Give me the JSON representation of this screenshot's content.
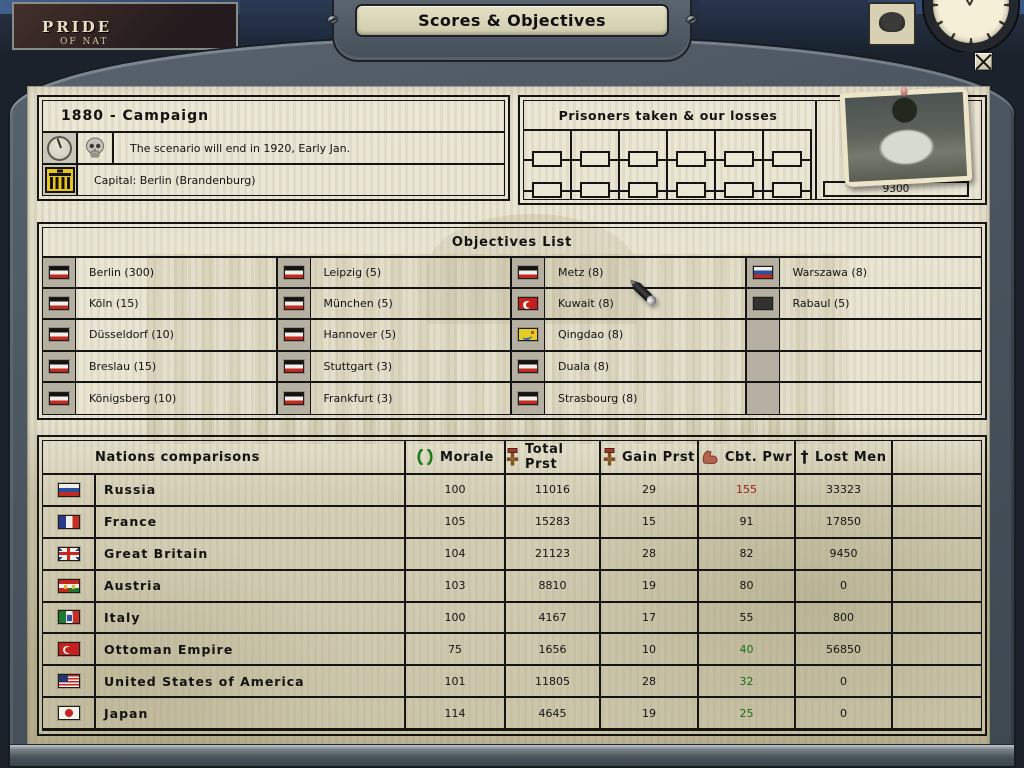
{
  "window": {
    "title": "Scores & Objectives"
  },
  "background": {
    "logo_line1": "PRIDE",
    "logo_line2": "OF NAT"
  },
  "campaign": {
    "title": "1880 - Campaign",
    "scenario_note": "The scenario will end in 1920, Early Jan.",
    "capital_note": "Capital: Berlin (Brandenburg)",
    "icons": [
      "clock-icon",
      "skull-icon",
      "brandenburg-gate-icon"
    ]
  },
  "prisoners": {
    "title": "Prisoners taken & our losses",
    "columns": 6,
    "boxes_per_column": 2,
    "losses_value": "9300",
    "photo": "monument-photo"
  },
  "objectives": {
    "title": "Objectives List",
    "columns": [
      [
        {
          "flag": "de",
          "name": "Berlin (300)"
        },
        {
          "flag": "de",
          "name": "Köln (15)"
        },
        {
          "flag": "de",
          "name": "Düsseldorf (10)"
        },
        {
          "flag": "de",
          "name": "Breslau (15)"
        },
        {
          "flag": "de",
          "name": "Königsberg (10)"
        }
      ],
      [
        {
          "flag": "de",
          "name": "Leipzig (5)"
        },
        {
          "flag": "de",
          "name": "München (5)"
        },
        {
          "flag": "de",
          "name": "Hannover (5)"
        },
        {
          "flag": "de",
          "name": "Stuttgart (3)"
        },
        {
          "flag": "de",
          "name": "Frankfurt (3)"
        }
      ],
      [
        {
          "flag": "de",
          "name": "Metz (8)"
        },
        {
          "flag": "ot",
          "name": "Kuwait (8)"
        },
        {
          "flag": "qi",
          "name": "Qingdao (8)"
        },
        {
          "flag": "de",
          "name": "Duala (8)"
        },
        {
          "flag": "de",
          "name": "Strasbourg (8)"
        }
      ],
      [
        {
          "flag": "ru",
          "name": "Warszawa (8)"
        },
        {
          "flag": "dk",
          "name": "Rabaul (5)"
        },
        {
          "flag": null,
          "name": ""
        },
        {
          "flag": null,
          "name": ""
        },
        {
          "flag": null,
          "name": ""
        }
      ]
    ]
  },
  "nations": {
    "title": "Nations comparisons",
    "headers": [
      {
        "icon": "wreath-icon",
        "label": "Morale"
      },
      {
        "icon": "medal-icon",
        "label": "Total Prst"
      },
      {
        "icon": "medal-icon",
        "label": "Gain Prst"
      },
      {
        "icon": "bicep-icon",
        "label": "Cbt. Pwr"
      },
      {
        "icon": "cross-icon",
        "label": "Lost Men"
      }
    ],
    "rows": [
      {
        "flag": "ru",
        "name": "Russia",
        "morale": "100",
        "total_prst": "11016",
        "gain_prst": "29",
        "cbt_pwr": "155",
        "cbt_color": "red",
        "lost_men": "33323"
      },
      {
        "flag": "fr",
        "name": "France",
        "morale": "105",
        "total_prst": "15283",
        "gain_prst": "15",
        "cbt_pwr": "91",
        "cbt_color": null,
        "lost_men": "17850"
      },
      {
        "flag": "gb",
        "name": "Great Britain",
        "morale": "104",
        "total_prst": "21123",
        "gain_prst": "28",
        "cbt_pwr": "82",
        "cbt_color": null,
        "lost_men": "9450"
      },
      {
        "flag": "at",
        "name": "Austria",
        "morale": "103",
        "total_prst": "8810",
        "gain_prst": "19",
        "cbt_pwr": "80",
        "cbt_color": null,
        "lost_men": "0"
      },
      {
        "flag": "it",
        "name": "Italy",
        "morale": "100",
        "total_prst": "4167",
        "gain_prst": "17",
        "cbt_pwr": "55",
        "cbt_color": null,
        "lost_men": "800"
      },
      {
        "flag": "ot",
        "name": "Ottoman Empire",
        "morale": "75",
        "total_prst": "1656",
        "gain_prst": "10",
        "cbt_pwr": "40",
        "cbt_color": "green",
        "lost_men": "56850"
      },
      {
        "flag": "us",
        "name": "United States of America",
        "morale": "101",
        "total_prst": "11805",
        "gain_prst": "28",
        "cbt_pwr": "32",
        "cbt_color": "green",
        "lost_men": "0"
      },
      {
        "flag": "jp",
        "name": "Japan",
        "morale": "114",
        "total_prst": "4645",
        "gain_prst": "19",
        "cbt_pwr": "25",
        "cbt_color": "green",
        "lost_men": "0"
      }
    ]
  },
  "colors": {
    "accent_red": "#9b1c10",
    "accent_green": "#1d6e1d",
    "steel": "#4a545e",
    "parchment": "#e9e5d3",
    "plaque": "#d9d6bc",
    "flag_cell": "#b6b0a3"
  }
}
